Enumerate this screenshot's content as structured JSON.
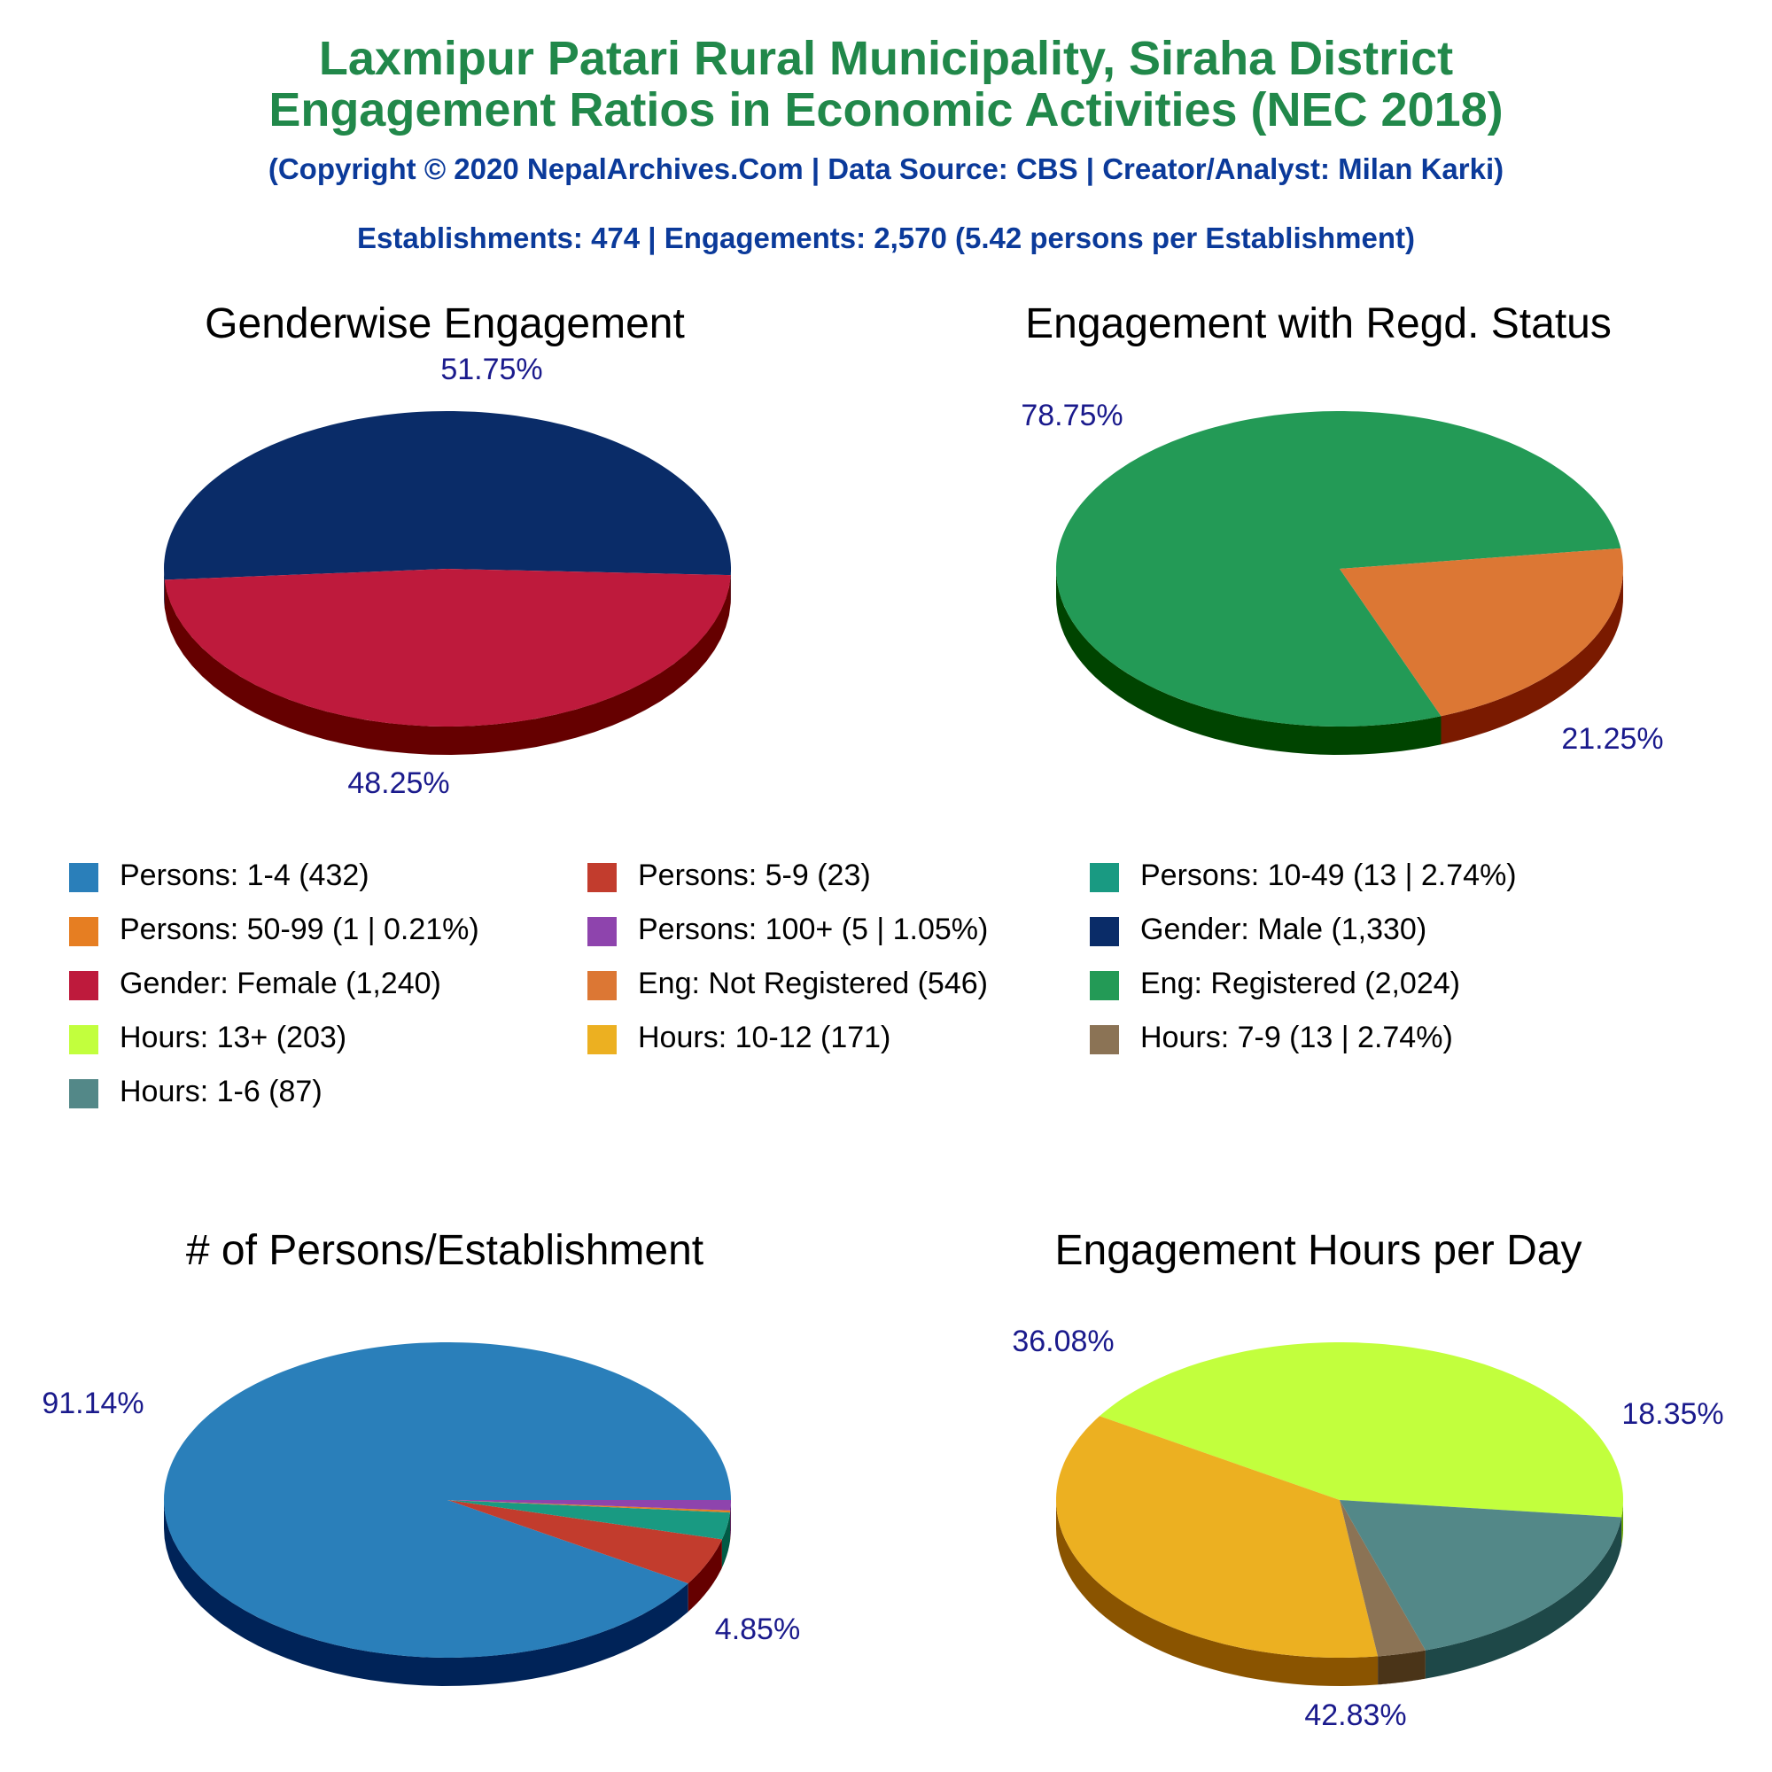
{
  "header": {
    "title_line1": "Laxmipur Patari Rural Municipality, Siraha District",
    "title_line2": "Engagement Ratios in Economic Activities (NEC 2018)",
    "subtitle": "(Copyright © 2020 NepalArchives.Com | Data Source: CBS | Creator/Analyst: Milan Karki)",
    "stats": "Establishments: 474 | Engagements: 2,570 (5.42 persons per Establishment)"
  },
  "chart_data": [
    {
      "type": "pie",
      "title": "Genderwise Engagement",
      "slices": [
        {
          "label": "Gender: Male",
          "value": 1330,
          "percent_label": "51.75%",
          "color": "#0a2c68",
          "side": "#041a45"
        },
        {
          "label": "Gender: Female",
          "value": 1240,
          "percent_label": "48.25%",
          "color": "#be1a3c",
          "side": "#650000"
        }
      ]
    },
    {
      "type": "pie",
      "title": "Engagement with Regd. Status",
      "slices": [
        {
          "label": "Eng: Registered",
          "value": 2024,
          "percent_label": "78.75%",
          "color": "#239a56",
          "side": "#004400"
        },
        {
          "label": "Eng: Not Registered",
          "value": 546,
          "percent_label": "21.25%",
          "color": "#dc7734",
          "side": "#7a1a00"
        }
      ]
    },
    {
      "type": "pie",
      "title": "# of Persons/Establishment",
      "slices": [
        {
          "label": "Persons: 1-4",
          "value": 432,
          "percent_label": "91.14%",
          "color": "#2a7fba",
          "side": "#002358"
        },
        {
          "label": "Persons: 5-9",
          "value": 23,
          "percent_label": "4.85%",
          "color": "#c23c2d",
          "side": "#650000"
        },
        {
          "label": "Persons: 10-49",
          "value": 13,
          "percent_label": "",
          "color": "#199a82",
          "side": "#005a45"
        },
        {
          "label": "Persons: 50-99",
          "value": 1,
          "percent_label": "",
          "color": "#e67e22",
          "side": "#7a3a00"
        },
        {
          "label": "Persons: 100+",
          "value": 5,
          "percent_label": "",
          "color": "#8e44ad",
          "side": "#3a0058"
        }
      ]
    },
    {
      "type": "pie",
      "title": "Engagement Hours per Day",
      "slices": [
        {
          "label": "Hours: 13+",
          "value": 203,
          "percent_label": "42.83%",
          "color": "#c2ff3d",
          "side": "#64a000"
        },
        {
          "label": "Hours: 10-12",
          "value": 171,
          "percent_label": "36.08%",
          "color": "#ecb021",
          "side": "#8a5400"
        },
        {
          "label": "Hours: 7-9",
          "value": 13,
          "percent_label": "",
          "color": "#8b7355",
          "side": "#4a3418"
        },
        {
          "label": "Hours: 1-6",
          "value": 87,
          "percent_label": "18.35%",
          "color": "#538888",
          "side": "#1e4848"
        }
      ]
    }
  ],
  "legend": [
    {
      "text": "Persons: 1-4 (432)",
      "color": "#2a7fba"
    },
    {
      "text": "Persons: 5-9 (23)",
      "color": "#c23c2d"
    },
    {
      "text": "Persons: 10-49 (13 | 2.74%)",
      "color": "#199a82"
    },
    {
      "text": "Persons: 50-99 (1 | 0.21%)",
      "color": "#e67e22"
    },
    {
      "text": "Persons: 100+ (5 | 1.05%)",
      "color": "#8e44ad"
    },
    {
      "text": "Gender: Male (1,330)",
      "color": "#0a2c68"
    },
    {
      "text": "Gender: Female (1,240)",
      "color": "#be1a3c"
    },
    {
      "text": "Eng: Not Registered (546)",
      "color": "#dc7734"
    },
    {
      "text": "Eng: Registered (2,024)",
      "color": "#239a56"
    },
    {
      "text": "Hours: 13+ (203)",
      "color": "#c2ff3d"
    },
    {
      "text": "Hours: 10-12 (171)",
      "color": "#ecb021"
    },
    {
      "text": "Hours: 7-9 (13 | 2.74%)",
      "color": "#8b7355"
    },
    {
      "text": "Hours: 1-6 (87)",
      "color": "#538888"
    }
  ]
}
